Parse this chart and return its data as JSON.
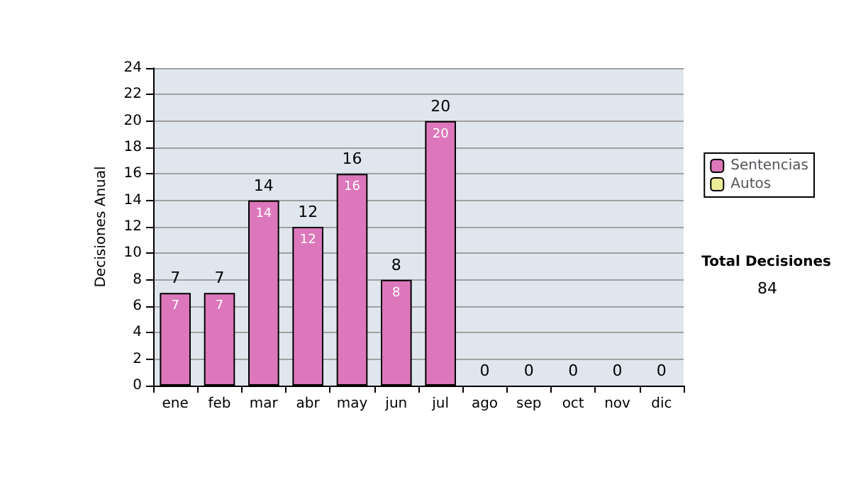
{
  "chart_data": {
    "type": "bar",
    "stacked": true,
    "ylabel": "Decisiones Anual",
    "categories": [
      "ene",
      "feb",
      "mar",
      "abr",
      "may",
      "jun",
      "jul",
      "ago",
      "sep",
      "oct",
      "nov",
      "dic"
    ],
    "series": [
      {
        "name": "Sentencias",
        "color": "#dd77bb",
        "values": [
          7,
          7,
          14,
          12,
          16,
          8,
          20,
          0,
          0,
          0,
          0,
          0
        ],
        "value_labels": [
          "7",
          "7",
          "14",
          "12",
          "16",
          "8",
          "20",
          null,
          null,
          null,
          null,
          null
        ]
      },
      {
        "name": "Autos",
        "color": "#eeee99",
        "values": [
          0,
          0,
          0,
          0,
          0,
          0,
          0,
          0,
          0,
          0,
          0,
          0
        ]
      }
    ],
    "totals": [
      "7",
      "7",
      "14",
      "12",
      "16",
      "8",
      "20",
      "0",
      "0",
      "0",
      "0",
      "0"
    ],
    "ylim": [
      0,
      24
    ],
    "yticks": [
      0,
      2,
      4,
      6,
      8,
      10,
      12,
      14,
      16,
      18,
      20,
      22,
      24
    ],
    "grid": "y",
    "legend": "right",
    "annotations": [
      "Total Decisiones",
      "84"
    ]
  }
}
